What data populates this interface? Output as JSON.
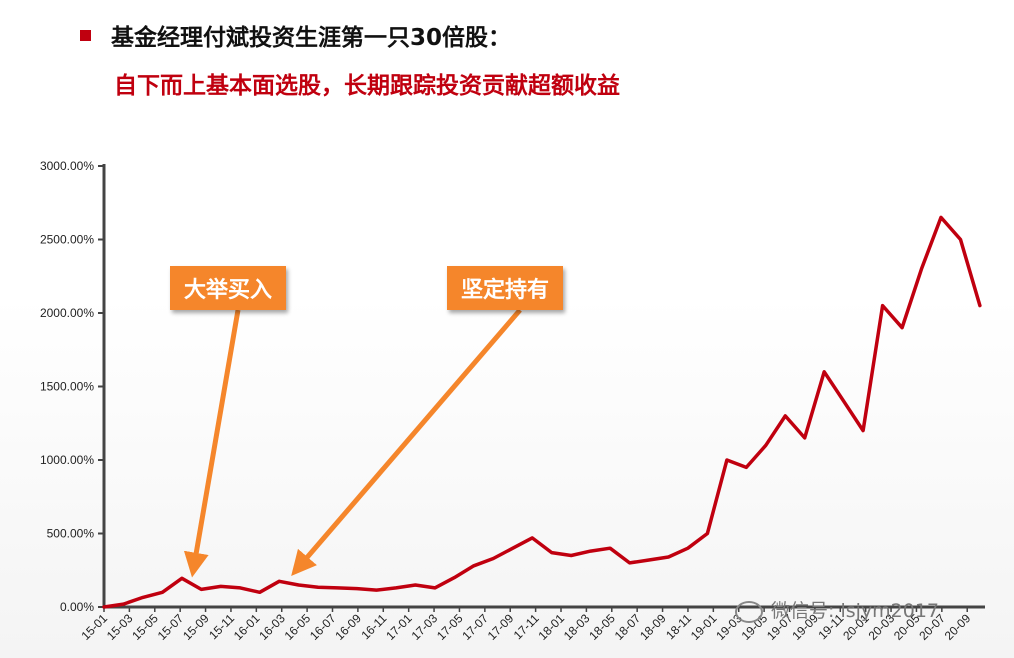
{
  "header": {
    "title": "基金经理付斌投资生涯第一只30倍股：",
    "subtitle": "自下而上基本面选股，长期跟踪投资贡献超额收益"
  },
  "callouts": [
    {
      "label": "大举买入",
      "target": "15-08"
    },
    {
      "label": "坚定持有",
      "target": "16-04"
    }
  ],
  "watermark": {
    "text": "微信号: lsjym2017"
  },
  "colors": {
    "line": "#c0000f",
    "callout": "#f5862b",
    "title_accent": "#c0000f"
  },
  "chart_data": {
    "type": "line",
    "title": "",
    "xlabel": "",
    "ylabel": "",
    "ylim": [
      0,
      3000
    ],
    "y_ticks": [
      "0.00%",
      "500.00%",
      "1000.00%",
      "1500.00%",
      "2000.00%",
      "2500.00%",
      "3000.00%"
    ],
    "x_ticks": [
      "15-01",
      "15-03",
      "15-05",
      "15-07",
      "15-09",
      "15-11",
      "16-01",
      "16-03",
      "16-05",
      "16-07",
      "16-09",
      "16-11",
      "17-01",
      "17-03",
      "17-05",
      "17-07",
      "17-09",
      "17-11",
      "18-01",
      "18-03",
      "18-05",
      "18-07",
      "18-09",
      "18-11",
      "19-01",
      "19-03",
      "19-05",
      "19-07",
      "19-09",
      "19-11",
      "20-01",
      "20-03",
      "20-05",
      "20-07",
      "20-09"
    ],
    "series": [
      {
        "values": [
          0,
          20,
          65,
          100,
          195,
          120,
          140,
          130,
          100,
          175,
          150,
          135,
          130,
          125,
          115,
          130,
          150,
          130,
          200,
          280,
          330,
          400,
          470,
          370,
          350,
          380,
          400,
          300,
          320,
          340,
          400,
          500,
          1000,
          950,
          1100,
          1300,
          1150,
          1600,
          1400,
          1200,
          2050,
          1900,
          2300,
          2650,
          2500,
          2050
        ]
      }
    ]
  }
}
